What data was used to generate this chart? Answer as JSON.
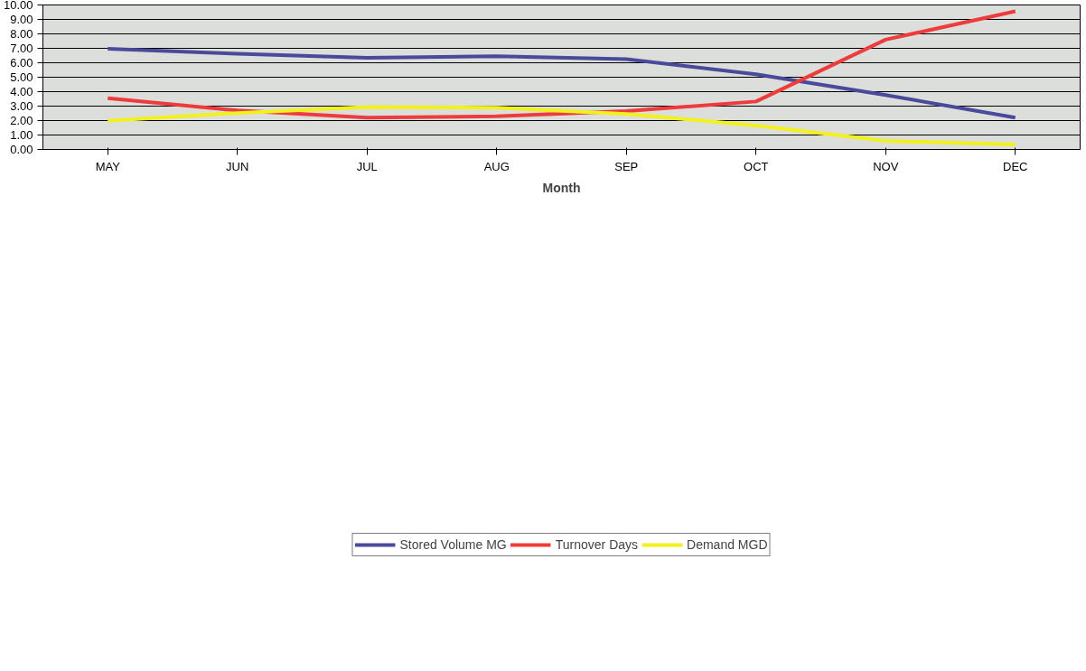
{
  "chart_data": {
    "type": "line",
    "xlabel": "Month",
    "categories": [
      "MAY",
      "JUN",
      "JUL",
      "AUG",
      "SEP",
      "OCT",
      "NOV",
      "DEC"
    ],
    "series": [
      {
        "name": "Stored Volume MG",
        "color": "#4a4a9a",
        "values": [
          6.97,
          6.62,
          6.34,
          6.46,
          6.25,
          5.2,
          3.77,
          2.2
        ]
      },
      {
        "name": "Turnover Days",
        "color": "#ee3b3b",
        "values": [
          3.54,
          2.7,
          2.21,
          2.29,
          2.65,
          3.32,
          7.6,
          9.56
        ]
      },
      {
        "name": "Demand MGD",
        "color": "#f2f01e",
        "values": [
          1.98,
          2.52,
          2.94,
          2.89,
          2.46,
          1.66,
          0.59,
          0.34
        ]
      }
    ],
    "ylim": [
      0,
      10
    ],
    "yticks": [
      {
        "value": 0,
        "label": "0.00"
      },
      {
        "value": 1,
        "label": "1.00"
      },
      {
        "value": 2,
        "label": "2.00"
      },
      {
        "value": 3,
        "label": "3.00"
      },
      {
        "value": 4,
        "label": "4.00"
      },
      {
        "value": 5,
        "label": "5.00"
      },
      {
        "value": 6,
        "label": "6.00"
      },
      {
        "value": 7,
        "label": "7.00"
      },
      {
        "value": 8,
        "label": "8.00"
      },
      {
        "value": 9,
        "label": "9.00"
      },
      {
        "value": 10,
        "label": "10.00"
      }
    ],
    "grid": "y",
    "legend": "bottom",
    "marker": "none",
    "line_style": "solid"
  }
}
